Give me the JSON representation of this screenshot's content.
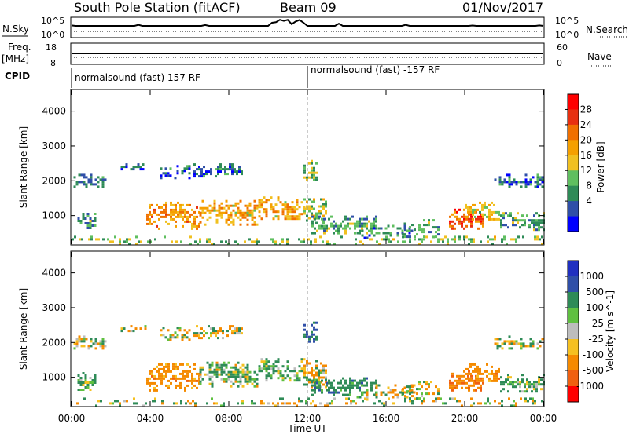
{
  "header": {
    "station": "South Pole Station (fitACF)",
    "beam": "Beam 09",
    "date": "01/Nov/2017"
  },
  "left_labels": {
    "nsky": "N.Sky",
    "freq": "Freq.",
    "freq_unit": "[MHz]",
    "cpid": "CPID"
  },
  "right_labels": {
    "nsearch": "N.Search",
    "nave": "Nave"
  },
  "noise_panel": {
    "left_ticks": [
      "10^5",
      "10^0"
    ],
    "right_ticks": [
      "10^5",
      "10^0"
    ]
  },
  "freq_panel": {
    "left_ticks": [
      "18",
      "8"
    ],
    "right_ticks": [
      "60",
      "0"
    ]
  },
  "cpid": {
    "segment1": "normalsound (fast) 157 RF",
    "segment2": "normalsound (fast) -157 RF"
  },
  "power_colorbar": {
    "label": "Power [dB]",
    "ticks": [
      "28",
      "24",
      "20",
      "16",
      "12",
      "8",
      "4"
    ],
    "colors": [
      "#0000ff",
      "#2f4fa8",
      "#2e8b57",
      "#5fbf5f",
      "#f0c020",
      "#f5a000",
      "#f07000",
      "#e83010",
      "#ff0000"
    ]
  },
  "velocity_colorbar": {
    "label": "Velocity [m s^-1]",
    "ticks": [
      "1000",
      "500",
      "100",
      "25",
      "-25",
      "-100",
      "-500",
      "-1000"
    ],
    "colors": [
      "#2030c0",
      "#2f4fa8",
      "#2e8b57",
      "#5fc040",
      "#bdbdbd",
      "#f5c020",
      "#f58a00",
      "#f06010",
      "#ff0000"
    ]
  },
  "x_axis": {
    "label": "Time UT",
    "ticks": [
      "00:00",
      "04:00",
      "08:00",
      "12:00",
      "16:00",
      "20:00",
      "00:00"
    ]
  },
  "chart_data": [
    {
      "type": "heatmap",
      "name": "Power",
      "ylabel": "Slant Range [km]",
      "yticks": [
        "1000",
        "2000",
        "3000",
        "4000"
      ],
      "xlim": [
        0,
        24
      ],
      "ylim": [
        180,
        4600
      ],
      "zlim": [
        0,
        30
      ],
      "xlabel": "Time UT",
      "blobs": [
        {
          "x0": 0.1,
          "x1": 1.7,
          "y0": 1850,
          "y1": 2200,
          "v": 6
        },
        {
          "x0": 0.3,
          "x1": 1.2,
          "y0": 650,
          "y1": 1150,
          "v": 9
        },
        {
          "x0": 2.5,
          "x1": 3.8,
          "y0": 2300,
          "y1": 2500,
          "v": 5
        },
        {
          "x0": 4.5,
          "x1": 6.0,
          "y0": 2050,
          "y1": 2450,
          "v": 6
        },
        {
          "x0": 6.2,
          "x1": 8.7,
          "y0": 2150,
          "y1": 2500,
          "v": 6
        },
        {
          "x0": 3.8,
          "x1": 6.5,
          "y0": 650,
          "y1": 1400,
          "v": 19
        },
        {
          "x0": 6.5,
          "x1": 9.5,
          "y0": 750,
          "y1": 1450,
          "v": 18
        },
        {
          "x0": 9.5,
          "x1": 11.8,
          "y0": 900,
          "y1": 1550,
          "v": 18
        },
        {
          "x0": 11.8,
          "x1": 13.0,
          "y0": 700,
          "y1": 1500,
          "v": 13
        },
        {
          "x0": 12.2,
          "x1": 15.5,
          "y0": 500,
          "y1": 1000,
          "v": 10
        },
        {
          "x0": 14.5,
          "x1": 17.5,
          "y0": 380,
          "y1": 800,
          "v": 7
        },
        {
          "x0": 19.2,
          "x1": 21.0,
          "y0": 600,
          "y1": 1200,
          "v": 23
        },
        {
          "x0": 20.0,
          "x1": 21.7,
          "y0": 900,
          "y1": 1400,
          "v": 14
        },
        {
          "x0": 21.8,
          "x1": 24.0,
          "y0": 600,
          "y1": 1100,
          "v": 9
        },
        {
          "x0": 21.5,
          "x1": 24.0,
          "y0": 1850,
          "y1": 2200,
          "v": 6
        },
        {
          "x0": 0.0,
          "x1": 24.0,
          "y0": 200,
          "y1": 420,
          "v": 12
        },
        {
          "x0": 11.8,
          "x1": 12.4,
          "y0": 2000,
          "y1": 2600,
          "v": 12
        },
        {
          "x0": 16.8,
          "x1": 18.8,
          "y0": 400,
          "y1": 900,
          "v": 9
        }
      ]
    },
    {
      "type": "heatmap",
      "name": "Velocity",
      "ylabel": "Slant Range [km]",
      "yticks": [
        "1000",
        "2000",
        "3000",
        "4000"
      ],
      "xlim": [
        0,
        24
      ],
      "ylim": [
        180,
        4600
      ],
      "zlim": [
        -1000,
        1000
      ],
      "xlabel": "Time UT",
      "blobs": [
        {
          "x0": 0.1,
          "x1": 1.7,
          "y0": 1850,
          "y1": 2200,
          "v": 0
        },
        {
          "x0": 0.3,
          "x1": 1.2,
          "y0": 650,
          "y1": 1150,
          "v": 150
        },
        {
          "x0": 2.5,
          "x1": 3.8,
          "y0": 2300,
          "y1": 2500,
          "v": 0
        },
        {
          "x0": 4.5,
          "x1": 6.0,
          "y0": 2050,
          "y1": 2450,
          "v": 0
        },
        {
          "x0": 6.2,
          "x1": 8.7,
          "y0": 2150,
          "y1": 2500,
          "v": 0
        },
        {
          "x0": 3.8,
          "x1": 6.5,
          "y0": 650,
          "y1": 1400,
          "v": -300
        },
        {
          "x0": 6.5,
          "x1": 9.5,
          "y0": 750,
          "y1": 1450,
          "v": 120
        },
        {
          "x0": 9.5,
          "x1": 11.8,
          "y0": 900,
          "y1": 1550,
          "v": 150
        },
        {
          "x0": 11.8,
          "x1": 13.0,
          "y0": 700,
          "y1": 1500,
          "v": -60
        },
        {
          "x0": 12.2,
          "x1": 15.5,
          "y0": 500,
          "y1": 1000,
          "v": 300
        },
        {
          "x0": 14.5,
          "x1": 17.5,
          "y0": 380,
          "y1": 800,
          "v": -60
        },
        {
          "x0": 19.2,
          "x1": 21.0,
          "y0": 600,
          "y1": 1200,
          "v": -400
        },
        {
          "x0": 20.0,
          "x1": 21.7,
          "y0": 900,
          "y1": 1400,
          "v": -300
        },
        {
          "x0": 21.8,
          "x1": 24.0,
          "y0": 600,
          "y1": 1100,
          "v": 150
        },
        {
          "x0": 21.5,
          "x1": 24.0,
          "y0": 1850,
          "y1": 2200,
          "v": 0
        },
        {
          "x0": 0.0,
          "x1": 24.0,
          "y0": 200,
          "y1": 420,
          "v": 0
        },
        {
          "x0": 11.8,
          "x1": 12.4,
          "y0": 2000,
          "y1": 2600,
          "v": 600
        },
        {
          "x0": 16.8,
          "x1": 18.8,
          "y0": 400,
          "y1": 900,
          "v": -60
        }
      ]
    }
  ]
}
